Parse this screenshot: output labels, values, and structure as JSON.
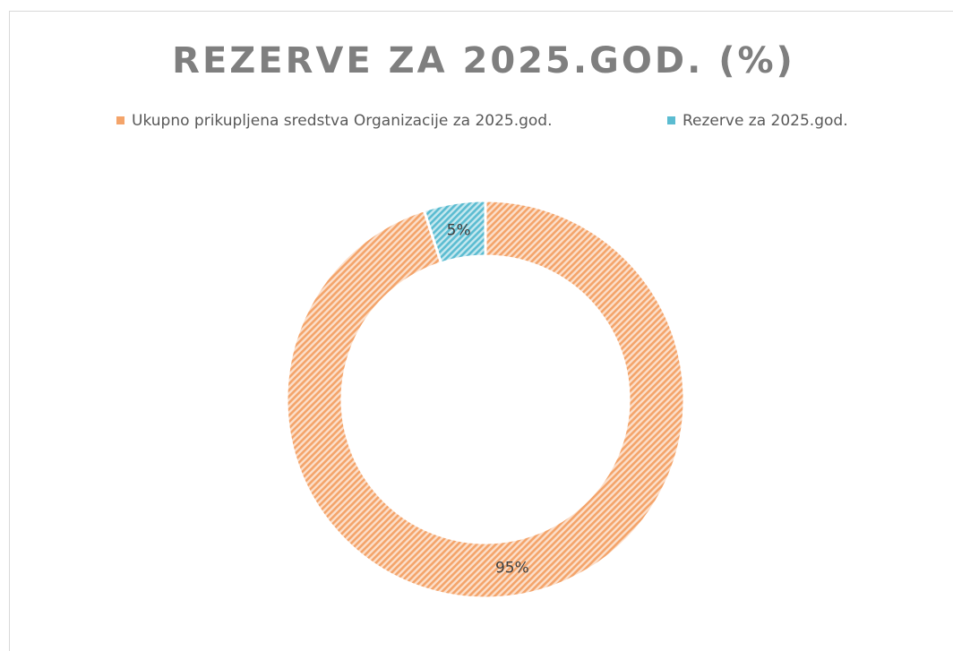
{
  "chart_data": {
    "type": "doughnut",
    "title": "REZERVE ZA 2025.GOD. (%)",
    "categories": [
      "Ukupno prikupljena sredstva Organizacije za 2025.god.",
      "Rezerve za 2025.god."
    ],
    "values": [
      95,
      5
    ],
    "value_labels": [
      "95%",
      "5%"
    ],
    "colors": [
      "#f4a46a",
      "#5bbcd1"
    ],
    "pattern": "diagonal-hatch",
    "legend": "top"
  }
}
